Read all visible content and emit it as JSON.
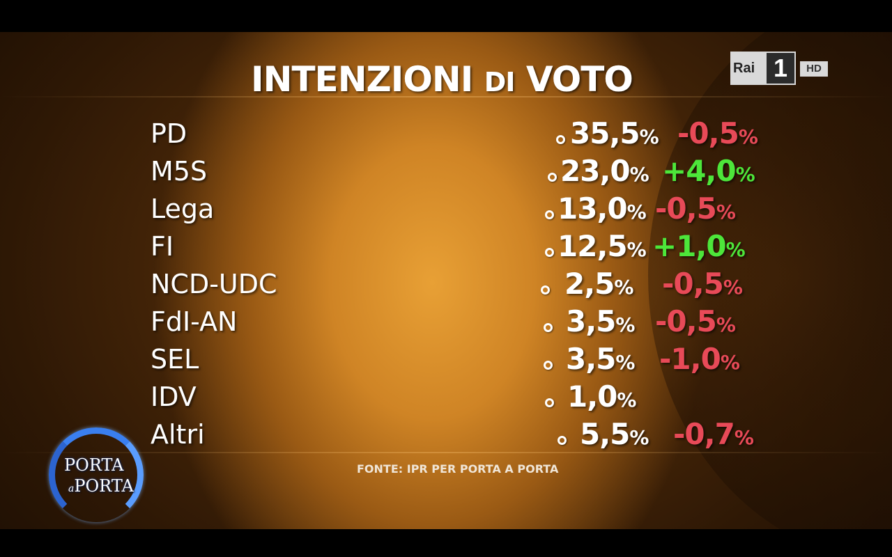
{
  "title": {
    "main": "INTENZIONI",
    "mid": "DI",
    "end": "VOTO"
  },
  "channel_logo": {
    "brand": "Rai",
    "number": "1",
    "badge": "HD"
  },
  "rows": [
    {
      "party": "PD",
      "value": "35,5",
      "delta": "-0,5",
      "delta_sign": "neg"
    },
    {
      "party": "M5S",
      "value": "23,0",
      "delta": "+4,0",
      "delta_sign": "pos"
    },
    {
      "party": "Lega",
      "value": "13,0",
      "delta": "-0,5",
      "delta_sign": "neg"
    },
    {
      "party": "FI",
      "value": "12,5",
      "delta": "+1,0",
      "delta_sign": "pos"
    },
    {
      "party": "NCD-UDC",
      "value": "2,5",
      "delta": "-0,5",
      "delta_sign": "neg"
    },
    {
      "party": "FdI-AN",
      "value": "3,5",
      "delta": "-0,5",
      "delta_sign": "neg"
    },
    {
      "party": "SEL",
      "value": "3,5",
      "delta": "-1,0",
      "delta_sign": "neg"
    },
    {
      "party": "IDV",
      "value": "1,0",
      "delta": "",
      "delta_sign": "none"
    },
    {
      "party": "Altri",
      "value": "5,5",
      "delta": "-0,7",
      "delta_sign": "neg"
    }
  ],
  "percent_symbol": "%",
  "source": "FONTE: IPR PER PORTA A PORTA",
  "show_logo": {
    "line1": "PORTA",
    "connector": "a",
    "line2": "PORTA"
  },
  "colors": {
    "negative": "#e84a58",
    "positive": "#4de63a",
    "text": "#ffffff"
  }
}
